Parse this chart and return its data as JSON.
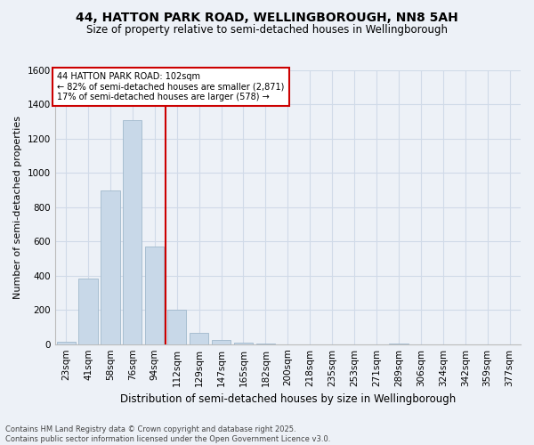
{
  "title": "44, HATTON PARK ROAD, WELLINGBOROUGH, NN8 5AH",
  "subtitle": "Size of property relative to semi-detached houses in Wellingborough",
  "xlabel": "Distribution of semi-detached houses by size in Wellingborough",
  "ylabel": "Number of semi-detached properties",
  "footer1": "Contains HM Land Registry data © Crown copyright and database right 2025.",
  "footer2": "Contains public sector information licensed under the Open Government Licence v3.0.",
  "categories": [
    "23sqm",
    "41sqm",
    "58sqm",
    "76sqm",
    "94sqm",
    "112sqm",
    "129sqm",
    "147sqm",
    "165sqm",
    "182sqm",
    "200sqm",
    "218sqm",
    "235sqm",
    "253sqm",
    "271sqm",
    "289sqm",
    "306sqm",
    "324sqm",
    "342sqm",
    "359sqm",
    "377sqm"
  ],
  "bar_values": [
    15,
    385,
    900,
    1310,
    570,
    200,
    65,
    25,
    8,
    2,
    0,
    0,
    0,
    0,
    0,
    5,
    0,
    0,
    0,
    0,
    0
  ],
  "bar_color": "#c8d8e8",
  "bar_edge_color": "#a0b8cc",
  "property_line_x": 4.5,
  "annotation_title": "44 HATTON PARK ROAD: 102sqm",
  "annotation_line1": "← 82% of semi-detached houses are smaller (2,871)",
  "annotation_line2": "17% of semi-detached houses are larger (578) →",
  "annotation_box_color": "#ffffff",
  "annotation_box_edge": "#cc0000",
  "vline_color": "#cc0000",
  "ylim": [
    0,
    1600
  ],
  "yticks": [
    0,
    200,
    400,
    600,
    800,
    1000,
    1200,
    1400,
    1600
  ],
  "grid_color": "#d0dae8",
  "bg_color": "#edf1f7",
  "title_fontsize": 10,
  "subtitle_fontsize": 8.5,
  "axis_label_fontsize": 8,
  "tick_fontsize": 7.5
}
